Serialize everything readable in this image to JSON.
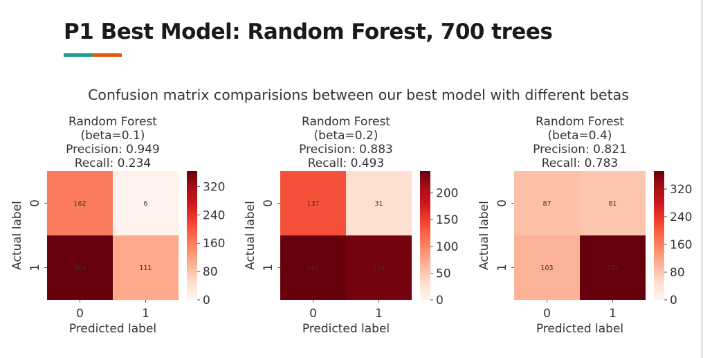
{
  "slide": {
    "title": "P1 Best Model: Random Forest, 700 trees",
    "accent_colors": [
      "#1f9a8f",
      "#e4570f"
    ]
  },
  "figure": {
    "suptitle": "Confusion matrix comparisions between our best model with different betas"
  },
  "chart_data": [
    {
      "type": "heatmap",
      "title_lines": [
        "Random Forest",
        "(beta=0.1)",
        "Precision: 0.949",
        "Recall: 0.234"
      ],
      "xlabel": "Predicted label",
      "ylabel": "Actual label",
      "x_ticks": [
        "0",
        "1"
      ],
      "y_ticks": [
        "0",
        "1"
      ],
      "values": [
        [
          162,
          6
        ],
        [
          364,
          111
        ]
      ],
      "colorbar": {
        "ticks": [
          0,
          80,
          160,
          240,
          320
        ],
        "range": [
          0,
          364
        ],
        "colormap": "Reds"
      }
    },
    {
      "type": "heatmap",
      "title_lines": [
        "Random Forest",
        "(beta=0.2)",
        "Precision: 0.883",
        "Recall: 0.493"
      ],
      "xlabel": "Predicted label",
      "ylabel": "Actual label",
      "x_ticks": [
        "0",
        "1"
      ],
      "y_ticks": [
        "0",
        "1"
      ],
      "values": [
        [
          137,
          31
        ],
        [
          241,
          234
        ]
      ],
      "colorbar": {
        "ticks": [
          0,
          50,
          100,
          150,
          200
        ],
        "range": [
          0,
          241
        ],
        "colormap": "Reds"
      }
    },
    {
      "type": "heatmap",
      "title_lines": [
        "Random Forest",
        "(beta=0.4)",
        "Precision: 0.821",
        "Recall: 0.783"
      ],
      "xlabel": "Predicted label",
      "ylabel": "Actual label",
      "x_ticks": [
        "0",
        "1"
      ],
      "y_ticks": [
        "0",
        "1"
      ],
      "values": [
        [
          87,
          81
        ],
        [
          103,
          372
        ]
      ],
      "colorbar": {
        "ticks": [
          0,
          80,
          160,
          240,
          320
        ],
        "range": [
          0,
          372
        ],
        "colormap": "Reds"
      }
    }
  ]
}
